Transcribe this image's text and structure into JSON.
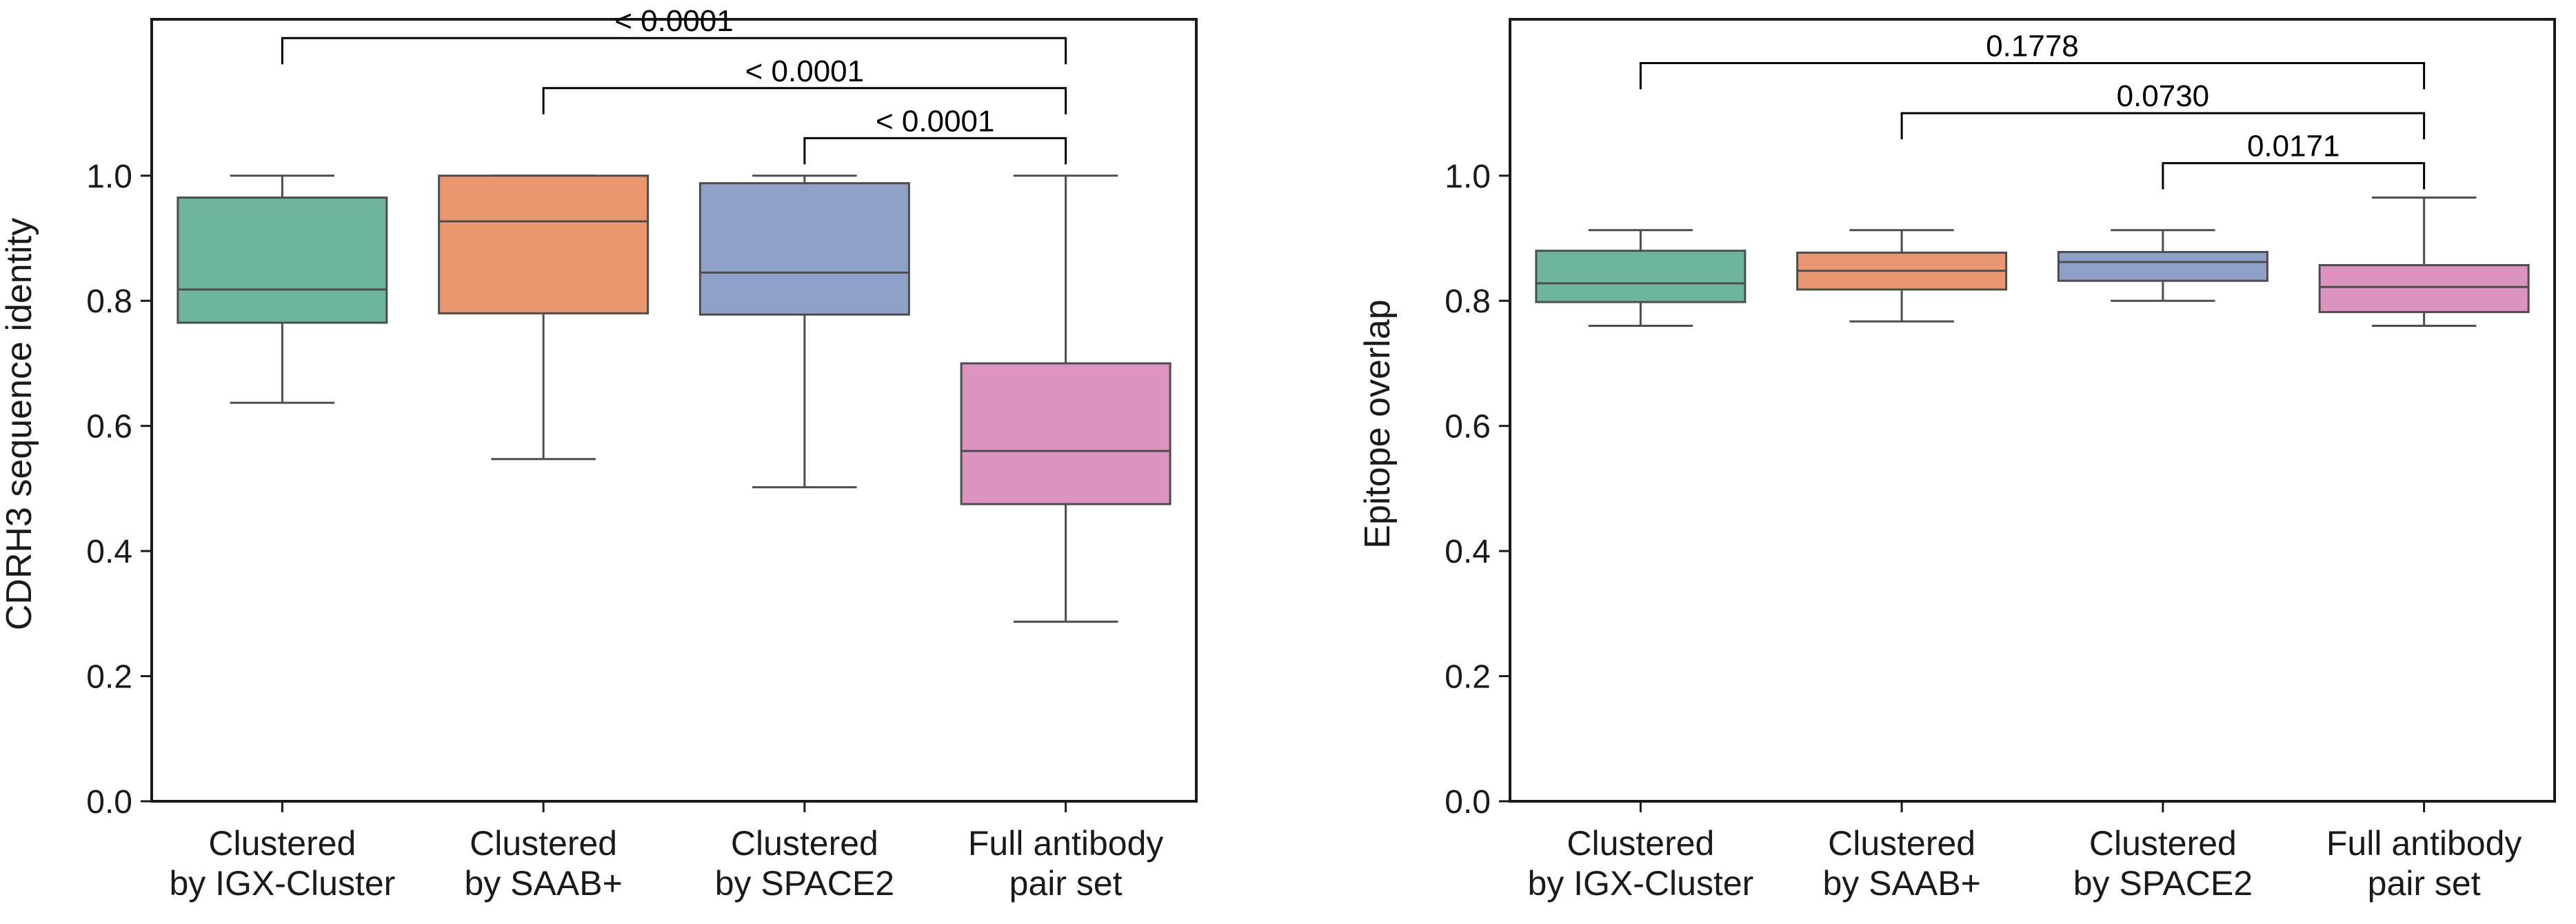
{
  "chart_data": [
    {
      "type": "box",
      "ylabel": "CDRH3 sequence identity",
      "ylim": [
        0,
        1.25
      ],
      "yticks": [
        "0.0",
        "0.2",
        "0.4",
        "0.6",
        "0.8",
        "1.0"
      ],
      "categories": [
        [
          "Clustered",
          "by IGX-Cluster"
        ],
        [
          "Clustered",
          "by SAAB+"
        ],
        [
          "Clustered",
          "by SPACE2"
        ],
        [
          "Full antibody",
          "pair set"
        ]
      ],
      "colors": [
        "#6db59f",
        "#e8976f",
        "#8fa1c7",
        "#dc93c0"
      ],
      "boxes": [
        {
          "whisker_low": 0.637,
          "q1": 0.765,
          "median": 0.818,
          "q3": 0.965,
          "whisker_high": 1.0
        },
        {
          "whisker_low": 0.547,
          "q1": 0.78,
          "median": 0.927,
          "q3": 1.0,
          "whisker_high": 1.0
        },
        {
          "whisker_low": 0.502,
          "q1": 0.778,
          "median": 0.845,
          "q3": 0.988,
          "whisker_high": 1.0
        },
        {
          "whisker_low": 0.287,
          "q1": 0.475,
          "median": 0.56,
          "q3": 0.7,
          "whisker_high": 1.0
        }
      ],
      "annotations": [
        {
          "from": 0,
          "to": 3,
          "level": 1.22,
          "text": "< 0.0001"
        },
        {
          "from": 1,
          "to": 3,
          "level": 1.14,
          "text": "< 0.0001"
        },
        {
          "from": 2,
          "to": 3,
          "level": 1.06,
          "text": "< 0.0001"
        }
      ]
    },
    {
      "type": "box",
      "ylabel": "Epitope overlap",
      "ylim": [
        0,
        1.25
      ],
      "yticks": [
        "0.0",
        "0.2",
        "0.4",
        "0.6",
        "0.8",
        "1.0"
      ],
      "categories": [
        [
          "Clustered",
          "by IGX-Cluster"
        ],
        [
          "Clustered",
          "by SAAB+"
        ],
        [
          "Clustered",
          "by SPACE2"
        ],
        [
          "Full antibody",
          "pair set"
        ]
      ],
      "colors": [
        "#6db59f",
        "#e8976f",
        "#8fa1c7",
        "#dc93c0"
      ],
      "boxes": [
        {
          "whisker_low": 0.76,
          "q1": 0.798,
          "median": 0.828,
          "q3": 0.88,
          "whisker_high": 0.913
        },
        {
          "whisker_low": 0.767,
          "q1": 0.818,
          "median": 0.848,
          "q3": 0.877,
          "whisker_high": 0.913
        },
        {
          "whisker_low": 0.8,
          "q1": 0.832,
          "median": 0.862,
          "q3": 0.878,
          "whisker_high": 0.913
        },
        {
          "whisker_low": 0.76,
          "q1": 0.782,
          "median": 0.822,
          "q3": 0.857,
          "whisker_high": 0.965
        }
      ],
      "annotations": [
        {
          "from": 0,
          "to": 3,
          "level": 1.18,
          "text": "0.1778"
        },
        {
          "from": 1,
          "to": 3,
          "level": 1.1,
          "text": "0.0730"
        },
        {
          "from": 2,
          "to": 3,
          "level": 1.02,
          "text": "0.0171"
        }
      ]
    }
  ]
}
